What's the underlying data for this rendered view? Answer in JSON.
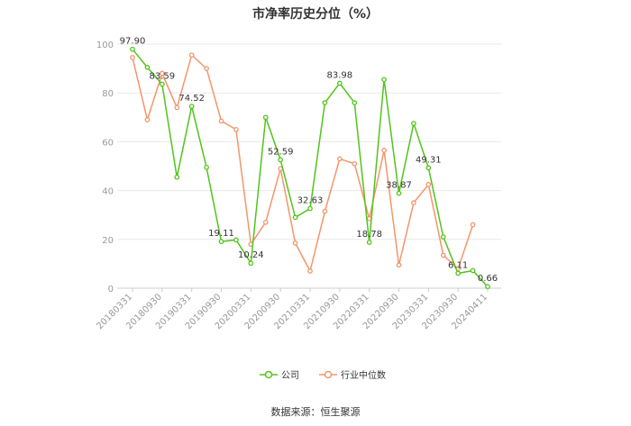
{
  "chart_data": {
    "type": "line",
    "title": "市净率历史分位（%）",
    "ylim": [
      0,
      100
    ],
    "yticks": [
      0,
      20,
      40,
      60,
      80,
      100
    ],
    "x_tick_labels": [
      "20180331",
      "20180930",
      "20190331",
      "20190930",
      "20200331",
      "20200930",
      "20210331",
      "20210930",
      "20220331",
      "20220930",
      "20230331",
      "20230930",
      "20240411"
    ],
    "grid": true,
    "legend_position": "bottom",
    "series": [
      {
        "name": "公司",
        "color": "#52c41a",
        "values": [
          97.9,
          90.5,
          83.59,
          45.5,
          74.52,
          49.5,
          19.11,
          19.8,
          10.24,
          70.0,
          52.59,
          29.0,
          32.63,
          76.0,
          83.98,
          76.0,
          18.78,
          85.5,
          38.87,
          67.5,
          49.31,
          21.0,
          6.11,
          7.2,
          0.66
        ],
        "labels": {
          "0": "97.90",
          "2": "83.59",
          "4": "74.52",
          "6": "19.11",
          "8": "10.24",
          "10": "52.59",
          "12": "32.63",
          "14": "83.98",
          "16": "18.78",
          "18": "38.87",
          "20": "49.31",
          "22": "6.11",
          "24": "0.66"
        }
      },
      {
        "name": "行业中位数",
        "color": "#f4956a",
        "values": [
          94.5,
          69.0,
          88.0,
          74.0,
          95.5,
          90.0,
          68.5,
          65.0,
          18.0,
          27.0,
          49.0,
          18.5,
          7.0,
          31.5,
          53.0,
          51.0,
          28.5,
          56.5,
          9.5,
          35.0,
          42.5,
          13.5,
          8.0,
          26.0,
          null
        ]
      }
    ]
  },
  "source": "数据来源：恒生聚源"
}
